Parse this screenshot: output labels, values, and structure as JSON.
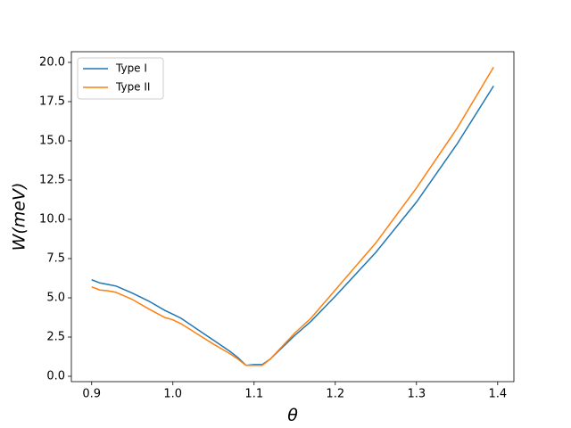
{
  "chart_data": {
    "type": "line",
    "xlabel": "θ",
    "ylabel": "W(meV)",
    "x": [
      0.9,
      0.91,
      0.92,
      0.93,
      0.95,
      0.97,
      0.99,
      1.0,
      1.01,
      1.03,
      1.05,
      1.07,
      1.08,
      1.09,
      1.1,
      1.11,
      1.12,
      1.15,
      1.17,
      1.2,
      1.25,
      1.3,
      1.35,
      1.395
    ],
    "series": [
      {
        "name": "Type I",
        "color": "#1f77b4",
        "values": [
          6.15,
          5.95,
          5.85,
          5.75,
          5.3,
          4.8,
          4.2,
          3.95,
          3.7,
          3.0,
          2.3,
          1.6,
          1.2,
          0.7,
          0.75,
          0.75,
          1.1,
          2.6,
          3.5,
          5.1,
          7.9,
          11.1,
          14.8,
          18.5
        ]
      },
      {
        "name": "Type II",
        "color": "#ff7f0e",
        "values": [
          5.7,
          5.5,
          5.45,
          5.35,
          4.9,
          4.3,
          3.75,
          3.6,
          3.35,
          2.7,
          2.05,
          1.45,
          1.1,
          0.7,
          0.7,
          0.7,
          1.1,
          2.75,
          3.7,
          5.5,
          8.5,
          12.0,
          15.8,
          19.7
        ]
      }
    ],
    "xlim": [
      0.875,
      1.42
    ],
    "ylim": [
      -0.34,
      20.68
    ],
    "xticks": [
      0.9,
      {
        "value": 1.0,
        "label": "1.0"
      },
      1.1,
      1.2,
      1.3,
      1.4
    ],
    "yticks": [
      {
        "value": 0,
        "label": "0.0"
      },
      2.5,
      {
        "value": 5,
        "label": "5.0"
      },
      7.5,
      {
        "value": 10,
        "label": "10.0"
      },
      12.5,
      {
        "value": 15,
        "label": "15.0"
      },
      17.5,
      {
        "value": 20,
        "label": "20.0"
      }
    ],
    "legend": "upper left"
  }
}
